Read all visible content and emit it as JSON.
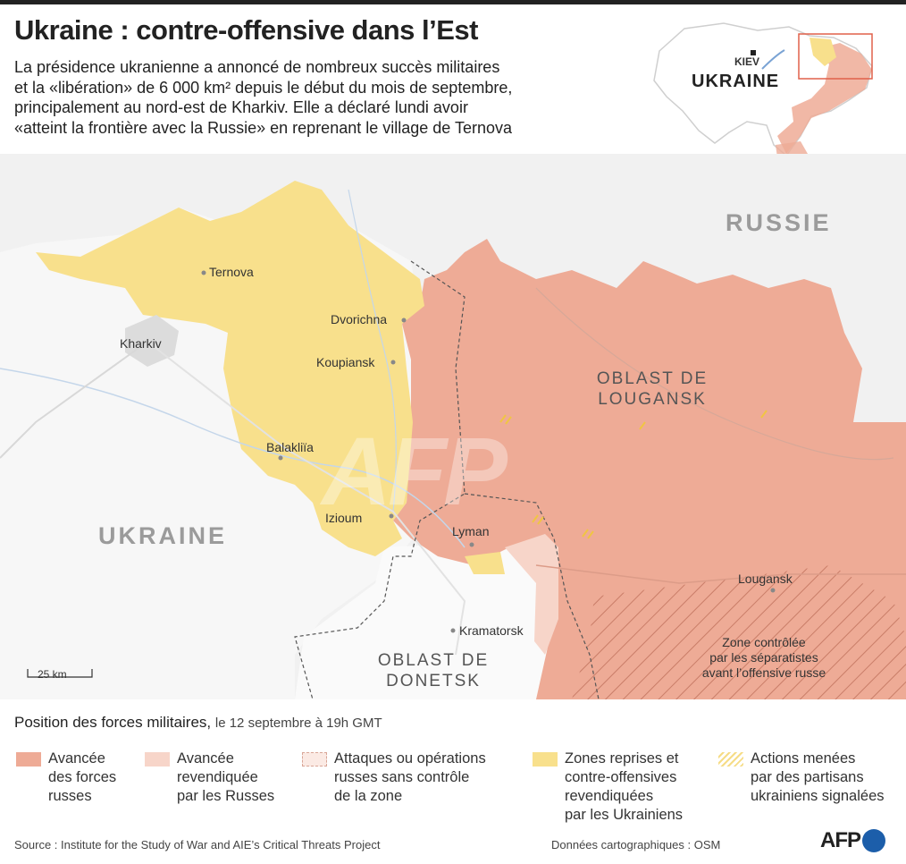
{
  "title": "Ukraine : contre-offensive dans l’Est",
  "intro": [
    "La présidence ukranienne a annoncé de nombreux succès militaires",
    "et la «libération» de 6 000 km² depuis le début du mois  de septembre,",
    "principalement au nord-est de Kharkiv. Elle a déclaré lundi avoir",
    "«atteint la frontière avec la Russie» en reprenant le village de Ternova"
  ],
  "inset": {
    "capital": "KIEV",
    "country": "UKRAINE"
  },
  "map": {
    "country_russia": "RUSSIE",
    "country_ukraine": "UKRAINE",
    "oblast_lougansk": [
      "OBLAST DE",
      "LOUGANSK"
    ],
    "oblast_donetsk": [
      "OBLAST DE",
      "DONETSK"
    ],
    "separatist_zone": [
      "Zone contrôlée",
      "par les séparatistes",
      "avant l’offensive russe"
    ],
    "watermark": "AFP",
    "scale": "25 km",
    "places": {
      "ternova": "Ternova",
      "kharkiv": "Kharkiv",
      "dvorichna": "Dvorichna",
      "koupiansk": "Koupiansk",
      "balakliia": "Balakliïa",
      "izioum": "Izioum",
      "lyman": "Lyman",
      "kramatorsk": "Kramatorsk",
      "lougansk": "Lougansk"
    }
  },
  "legend": {
    "heading": "Position des forces militaires,",
    "subheading": "le 12 septembre à 19h GMT",
    "items": [
      {
        "lines": [
          "Avancée",
          "des forces",
          "russes"
        ],
        "color": "#eeab96"
      },
      {
        "lines": [
          "Avancée",
          "revendiquée",
          "par les Russes"
        ],
        "color": "#f7d5c9"
      },
      {
        "lines": [
          "Attaques ou opérations",
          "russes sans contrôle",
          "de la zone"
        ],
        "color": "#fbeae4"
      },
      {
        "lines": [
          "Zones reprises et",
          "contre-offensives",
          "revendiquées",
          "par les Ukrainiens"
        ],
        "color": "#f8e08c"
      },
      {
        "lines": [
          "Actions menées",
          "par des partisans",
          "ukrainiens signalées"
        ],
        "color": "#f6dc86"
      }
    ]
  },
  "footer": {
    "source": "Source : Institute for the Study of War and AIE’s Critical Threats Project",
    "credits": "Données cartographiques : OSM",
    "logo": "AFP"
  },
  "colors": {
    "russian": "#eeab96",
    "claimed": "#f7d5c9",
    "ukraine": "#f8e08c",
    "land": "#f4f4f4",
    "land_white": "#ffffff"
  }
}
